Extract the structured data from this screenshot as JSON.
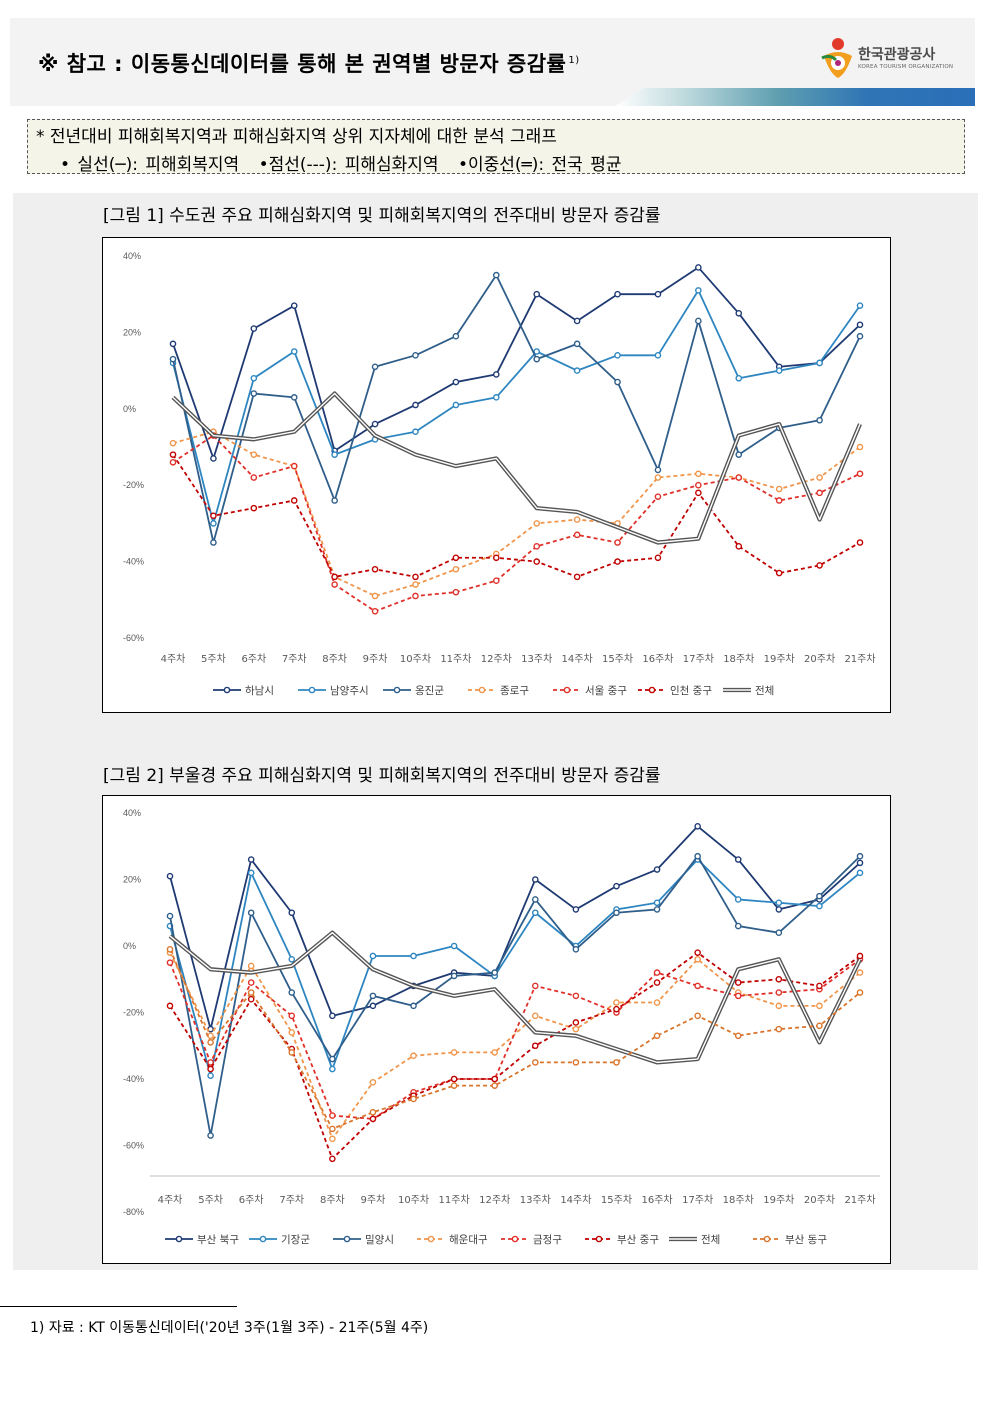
{
  "header": {
    "title": "※ 참고 : 이동통신데이터를 통해 본 권역별 방문자 증감률",
    "title_sup": "1)",
    "logo_text": "한국관광공사",
    "logo_sub": "KOREA TOURISM ORGANIZATION"
  },
  "note": {
    "line1": "*  전년대비 피해회복지역과 피해심화지역 상위 지자체에 대한 분석 그래프",
    "item1": "• 실선(─): 피해회복지역",
    "item2": "•점선(---): 피해심화지역",
    "item3": "•이중선(═): 전국 평균"
  },
  "figure1": {
    "title": "[그림 1] 수도권 주요 피해심화지역 및 피해회복지역의 전주대비 방문자 증감률"
  },
  "figure2": {
    "title": "[그림 2] 부울경 주요 피해심화지역 및 피해회복지역의 전주대비 방문자 증감률"
  },
  "footnote": {
    "text": "1) 자료 : KT 이동통신데이터('20년 3주(1월 3주) - 21주(5월 4주)"
  },
  "chart_data": [
    {
      "type": "line",
      "title": "[그림 1] 수도권 주요 피해심화지역 및 피해회복지역의 전주대비 방문자 증감률",
      "categories": [
        "4주차",
        "5주차",
        "6주차",
        "7주차",
        "8주차",
        "9주차",
        "10주차",
        "11주차",
        "12주차",
        "13주차",
        "14주차",
        "15주차",
        "16주차",
        "17주차",
        "18주차",
        "19주차",
        "20주차",
        "21주차"
      ],
      "ylim": [
        -60,
        40
      ],
      "yticks": [
        40,
        20,
        0,
        -20,
        -40,
        -60
      ],
      "ytick_labels": [
        "40%",
        "20%",
        "0%",
        "-20%",
        "-40%",
        "-60%"
      ],
      "legend_position": "bottom",
      "series": [
        {
          "name": "하남시",
          "style": "solid",
          "color": "#1f3a73",
          "values": [
            17,
            -13,
            21,
            27,
            -11,
            -4,
            1,
            7,
            9,
            30,
            23,
            30,
            30,
            37,
            25,
            11,
            12,
            22
          ]
        },
        {
          "name": "남양주시",
          "style": "solid",
          "color": "#2e86c1",
          "values": [
            12,
            -30,
            8,
            15,
            -12,
            -8,
            -6,
            1,
            3,
            15,
            10,
            14,
            14,
            31,
            8,
            10,
            12,
            27
          ]
        },
        {
          "name": "옹진군",
          "style": "solid",
          "color": "#2f5e8a",
          "values": [
            13,
            -35,
            4,
            3,
            -24,
            11,
            14,
            19,
            35,
            13,
            17,
            7,
            -16,
            23,
            -12,
            -5,
            -3,
            19
          ]
        },
        {
          "name": "종로구",
          "style": "dash",
          "color": "#f0954a",
          "values": [
            -9,
            -6,
            -12,
            -15,
            -44,
            -49,
            -46,
            -42,
            -38,
            -30,
            -29,
            -30,
            -18,
            -17,
            -18,
            -21,
            -18,
            -10
          ]
        },
        {
          "name": "서울 중구",
          "style": "dash",
          "color": "#e0302a",
          "values": [
            -14,
            -7,
            -18,
            -15,
            -46,
            -53,
            -49,
            -48,
            -45,
            -36,
            -33,
            -35,
            -23,
            -20,
            -18,
            -24,
            -22,
            -17
          ]
        },
        {
          "name": "인천 중구",
          "style": "dash",
          "color": "#c00000",
          "values": [
            -12,
            -28,
            -26,
            -24,
            -44,
            -42,
            -44,
            -39,
            -39,
            -40,
            -44,
            -40,
            -39,
            -22,
            -36,
            -43,
            -41,
            -35
          ]
        },
        {
          "name": "전체",
          "style": "double",
          "color": "#555555",
          "values": [
            3,
            -7,
            -8,
            -6,
            4,
            -7,
            -12,
            -15,
            -13,
            -26,
            -27,
            -31,
            -35,
            -34,
            -7,
            -4,
            -29,
            -4
          ]
        }
      ]
    },
    {
      "type": "line",
      "title": "[그림 2] 부울경 주요 피해심화지역 및 피해회복지역의 전주대비 방문자 증감률",
      "categories": [
        "4주차",
        "5주차",
        "6주차",
        "7주차",
        "8주차",
        "9주차",
        "10주차",
        "11주차",
        "12주차",
        "13주차",
        "14주차",
        "15주차",
        "16주차",
        "17주차",
        "18주차",
        "19주차",
        "20주차",
        "21주차"
      ],
      "ylim": [
        -80,
        40
      ],
      "yticks": [
        40,
        20,
        0,
        -20,
        -40,
        -60,
        -80
      ],
      "ytick_labels": [
        "40%",
        "20%",
        "0%",
        "-20%",
        "-40%",
        "-60%",
        "-80%"
      ],
      "legend_position": "bottom",
      "series": [
        {
          "name": "부산 북구",
          "style": "solid",
          "color": "#1f3a73",
          "values": [
            21,
            -25,
            26,
            10,
            -21,
            -18,
            -12,
            -8,
            -9,
            20,
            11,
            18,
            23,
            36,
            26,
            11,
            14,
            25
          ]
        },
        {
          "name": "기장군",
          "style": "solid",
          "color": "#2e86c1",
          "values": [
            6,
            -39,
            22,
            -4,
            -37,
            -3,
            -3,
            0,
            -9,
            10,
            0,
            11,
            13,
            26,
            14,
            13,
            12,
            22
          ]
        },
        {
          "name": "밀양시",
          "style": "solid",
          "color": "#2f5e8a",
          "values": [
            9,
            -57,
            10,
            -14,
            -34,
            -15,
            -18,
            -9,
            -8,
            14,
            -1,
            10,
            11,
            27,
            6,
            4,
            15,
            27
          ]
        },
        {
          "name": "해운대구",
          "style": "dash",
          "color": "#f0954a",
          "values": [
            -2,
            -27,
            -6,
            -26,
            -58,
            -41,
            -33,
            -32,
            -32,
            -21,
            -25,
            -17,
            -17,
            -4,
            -14,
            -18,
            -18,
            -8
          ]
        },
        {
          "name": "금정구",
          "style": "dash",
          "color": "#e0302a",
          "values": [
            -5,
            -35,
            -11,
            -21,
            -51,
            -52,
            -44,
            -40,
            -40,
            -12,
            -15,
            -20,
            -8,
            -12,
            -15,
            -14,
            -13,
            -4
          ]
        },
        {
          "name": "부산 중구",
          "style": "dash",
          "color": "#c00000",
          "values": [
            -18,
            -37,
            -16,
            -31,
            -64,
            -52,
            -45,
            -40,
            -40,
            -30,
            -23,
            -19,
            -11,
            -2,
            -11,
            -10,
            -12,
            -3
          ]
        },
        {
          "name": "전체",
          "style": "double",
          "color": "#555555",
          "values": [
            3,
            -7,
            -8,
            -6,
            4,
            -7,
            -12,
            -15,
            -13,
            -26,
            -27,
            -31,
            -35,
            -34,
            -7,
            -4,
            -29,
            -4
          ]
        },
        {
          "name": "부산 동구",
          "style": "dash",
          "color": "#d9742b",
          "values": [
            -1,
            -29,
            -14,
            -32,
            -55,
            -50,
            -46,
            -42,
            -42,
            -35,
            -35,
            -35,
            -27,
            -21,
            -27,
            -25,
            -24,
            -14
          ]
        }
      ]
    }
  ]
}
